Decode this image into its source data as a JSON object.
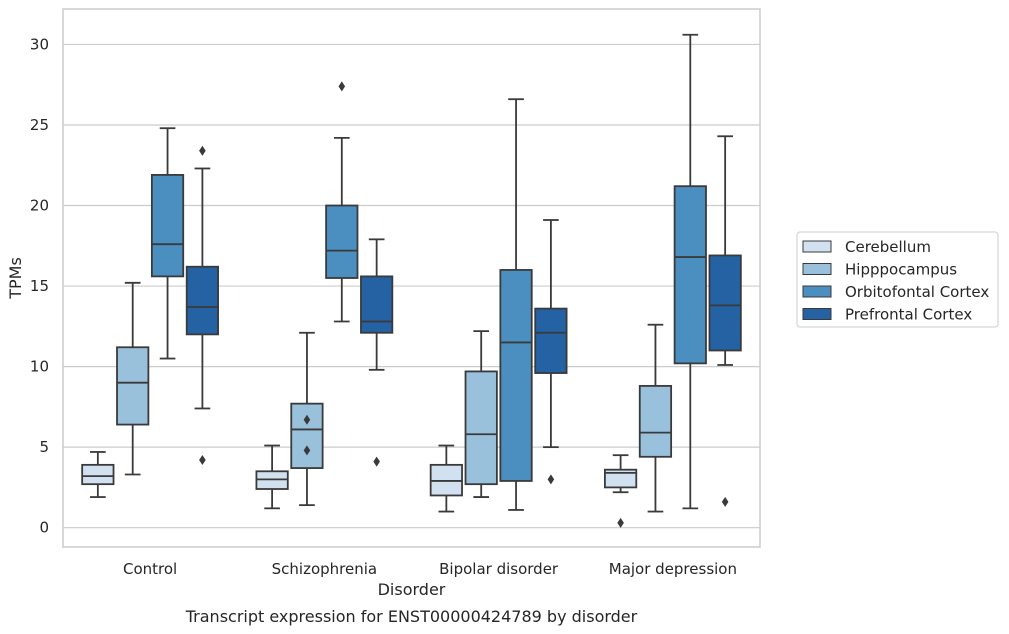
{
  "chart_data": {
    "type": "boxplot",
    "caption": "Transcript expression for ENST00000424789 by disorder",
    "xlabel": "Disorder",
    "ylabel": "TPMs",
    "ylim": [
      -1.2,
      32.2
    ],
    "yticks": [
      0,
      5,
      10,
      15,
      20,
      25,
      30
    ],
    "grid": "horizontal",
    "legend_position": "right",
    "categories": [
      "Control",
      "Schizophrenia",
      "Bipolar disorder",
      "Major depression"
    ],
    "series": [
      {
        "name": "Cerebellum",
        "color": "#d2e1f0",
        "boxes": [
          {
            "min": 1.9,
            "q1": 2.7,
            "median": 3.2,
            "q3": 3.9,
            "max": 4.7,
            "outliers": []
          },
          {
            "min": 1.2,
            "q1": 2.4,
            "median": 3.0,
            "q3": 3.5,
            "max": 5.1,
            "outliers": []
          },
          {
            "min": 1.0,
            "q1": 2.0,
            "median": 2.9,
            "q3": 3.9,
            "max": 5.1,
            "outliers": []
          },
          {
            "min": 2.2,
            "q1": 2.5,
            "median": 3.4,
            "q3": 3.6,
            "max": 4.5,
            "outliers": [
              0.3
            ]
          }
        ]
      },
      {
        "name": "Hipppocampus",
        "color": "#99c1dc",
        "boxes": [
          {
            "min": 3.3,
            "q1": 6.4,
            "median": 9.0,
            "q3": 11.2,
            "max": 15.2,
            "outliers": []
          },
          {
            "min": 1.4,
            "q1": 3.7,
            "median": 6.1,
            "q3": 7.7,
            "max": 12.1,
            "outliers": [
              6.7,
              4.8
            ]
          },
          {
            "min": 1.9,
            "q1": 2.7,
            "median": 5.8,
            "q3": 9.7,
            "max": 12.2,
            "outliers": []
          },
          {
            "min": 1.0,
            "q1": 4.4,
            "median": 5.9,
            "q3": 8.8,
            "max": 12.6,
            "outliers": []
          }
        ]
      },
      {
        "name": "Orbitofontal Cortex",
        "color": "#4b8ec0",
        "boxes": [
          {
            "min": 10.5,
            "q1": 15.6,
            "median": 17.6,
            "q3": 21.9,
            "max": 24.8,
            "outliers": []
          },
          {
            "min": 12.8,
            "q1": 15.5,
            "median": 17.2,
            "q3": 20.0,
            "max": 24.2,
            "outliers": [
              27.4
            ]
          },
          {
            "min": 1.1,
            "q1": 2.9,
            "median": 11.5,
            "q3": 16.0,
            "max": 26.6,
            "outliers": []
          },
          {
            "min": 1.2,
            "q1": 10.2,
            "median": 16.8,
            "q3": 21.2,
            "max": 30.6,
            "outliers": []
          }
        ]
      },
      {
        "name": "Prefrontal Cortex",
        "color": "#2462a3",
        "boxes": [
          {
            "min": 7.4,
            "q1": 12.0,
            "median": 13.7,
            "q3": 16.2,
            "max": 22.3,
            "outliers": [
              23.4,
              4.2
            ]
          },
          {
            "min": 9.8,
            "q1": 12.1,
            "median": 12.8,
            "q3": 15.6,
            "max": 17.9,
            "outliers": [
              4.1
            ]
          },
          {
            "min": 5.0,
            "q1": 9.6,
            "median": 12.1,
            "q3": 13.6,
            "max": 19.1,
            "outliers": [
              3.0
            ]
          },
          {
            "min": 10.1,
            "q1": 11.0,
            "median": 13.8,
            "q3": 16.9,
            "max": 24.3,
            "outliers": [
              1.6
            ]
          }
        ]
      }
    ]
  }
}
